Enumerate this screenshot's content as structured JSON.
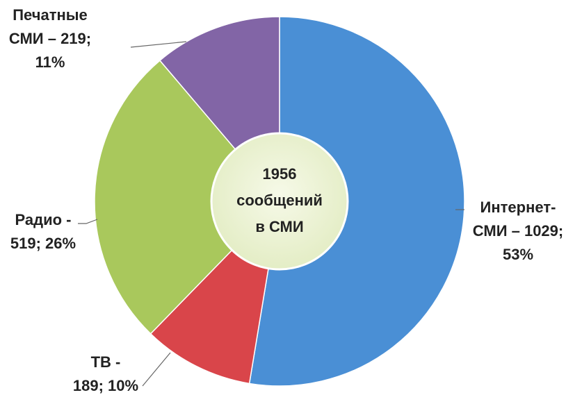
{
  "chart_data": {
    "type": "donut",
    "values": [
      1029,
      189,
      519,
      219
    ],
    "value_labels": [
      [
        "Интернет-",
        "СМИ – 1029;",
        "53%"
      ],
      [
        "ТВ -",
        "189; 10%"
      ],
      [
        "Радио -",
        "519; 26%"
      ],
      [
        "Печатные",
        "СМИ – 219;",
        "11%"
      ]
    ],
    "colors": [
      "#4a8fd5",
      "#d9454a",
      "#a9c85c",
      "#8265a6"
    ],
    "center_label": [
      "1956",
      "сообщений",
      "в СМИ"
    ]
  }
}
